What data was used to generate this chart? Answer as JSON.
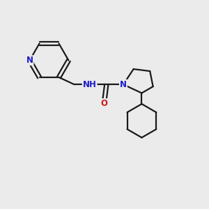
{
  "bg_color": "#ebebeb",
  "bond_color": "#1a1a1a",
  "N_color": "#1a1acc",
  "O_color": "#cc1a1a",
  "line_width": 1.6,
  "font_size_atom": 8.5,
  "figsize": [
    3.0,
    3.0
  ],
  "dpi": 100,
  "xlim": [
    0,
    10
  ],
  "ylim": [
    0,
    10
  ]
}
